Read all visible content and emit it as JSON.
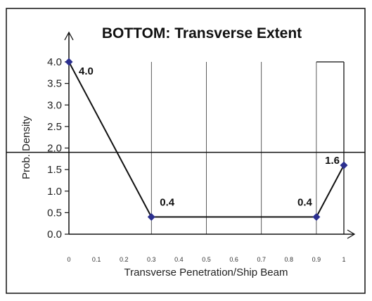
{
  "chart_data": {
    "type": "line",
    "title": "BOTTOM: Transverse Extent",
    "xlabel": "Transverse Penetration/Ship Beam",
    "ylabel": "Prob. Density",
    "x_ticks": [
      "0",
      "0.1",
      "0.2",
      "0.3",
      "0.4",
      "0.5",
      "0.6",
      "0.7",
      "0.8",
      "0.9",
      "1"
    ],
    "y_ticks": [
      "4.0",
      "3.5",
      "3.0",
      "2.5",
      "2.0",
      "1.5",
      "1.0",
      "0.5",
      "0.0"
    ],
    "xlim": [
      0,
      1
    ],
    "ylim": [
      0,
      4
    ],
    "reference_line_y": 1.9,
    "series": [
      {
        "points": [
          {
            "x": 0.0,
            "y": 4.0,
            "label": "4.0"
          },
          {
            "x": 0.3,
            "y": 0.4,
            "label": "0.4"
          },
          {
            "x": 0.9,
            "y": 0.4,
            "label": "0.4"
          },
          {
            "x": 1.0,
            "y": 1.6,
            "label": "1.6"
          }
        ]
      }
    ],
    "gridlines_x": [
      0.3,
      0.5,
      0.7,
      0.9,
      1.0
    ],
    "colors": {
      "line": "#111111",
      "marker": "#2b2f8f",
      "grid": "#333333"
    }
  }
}
